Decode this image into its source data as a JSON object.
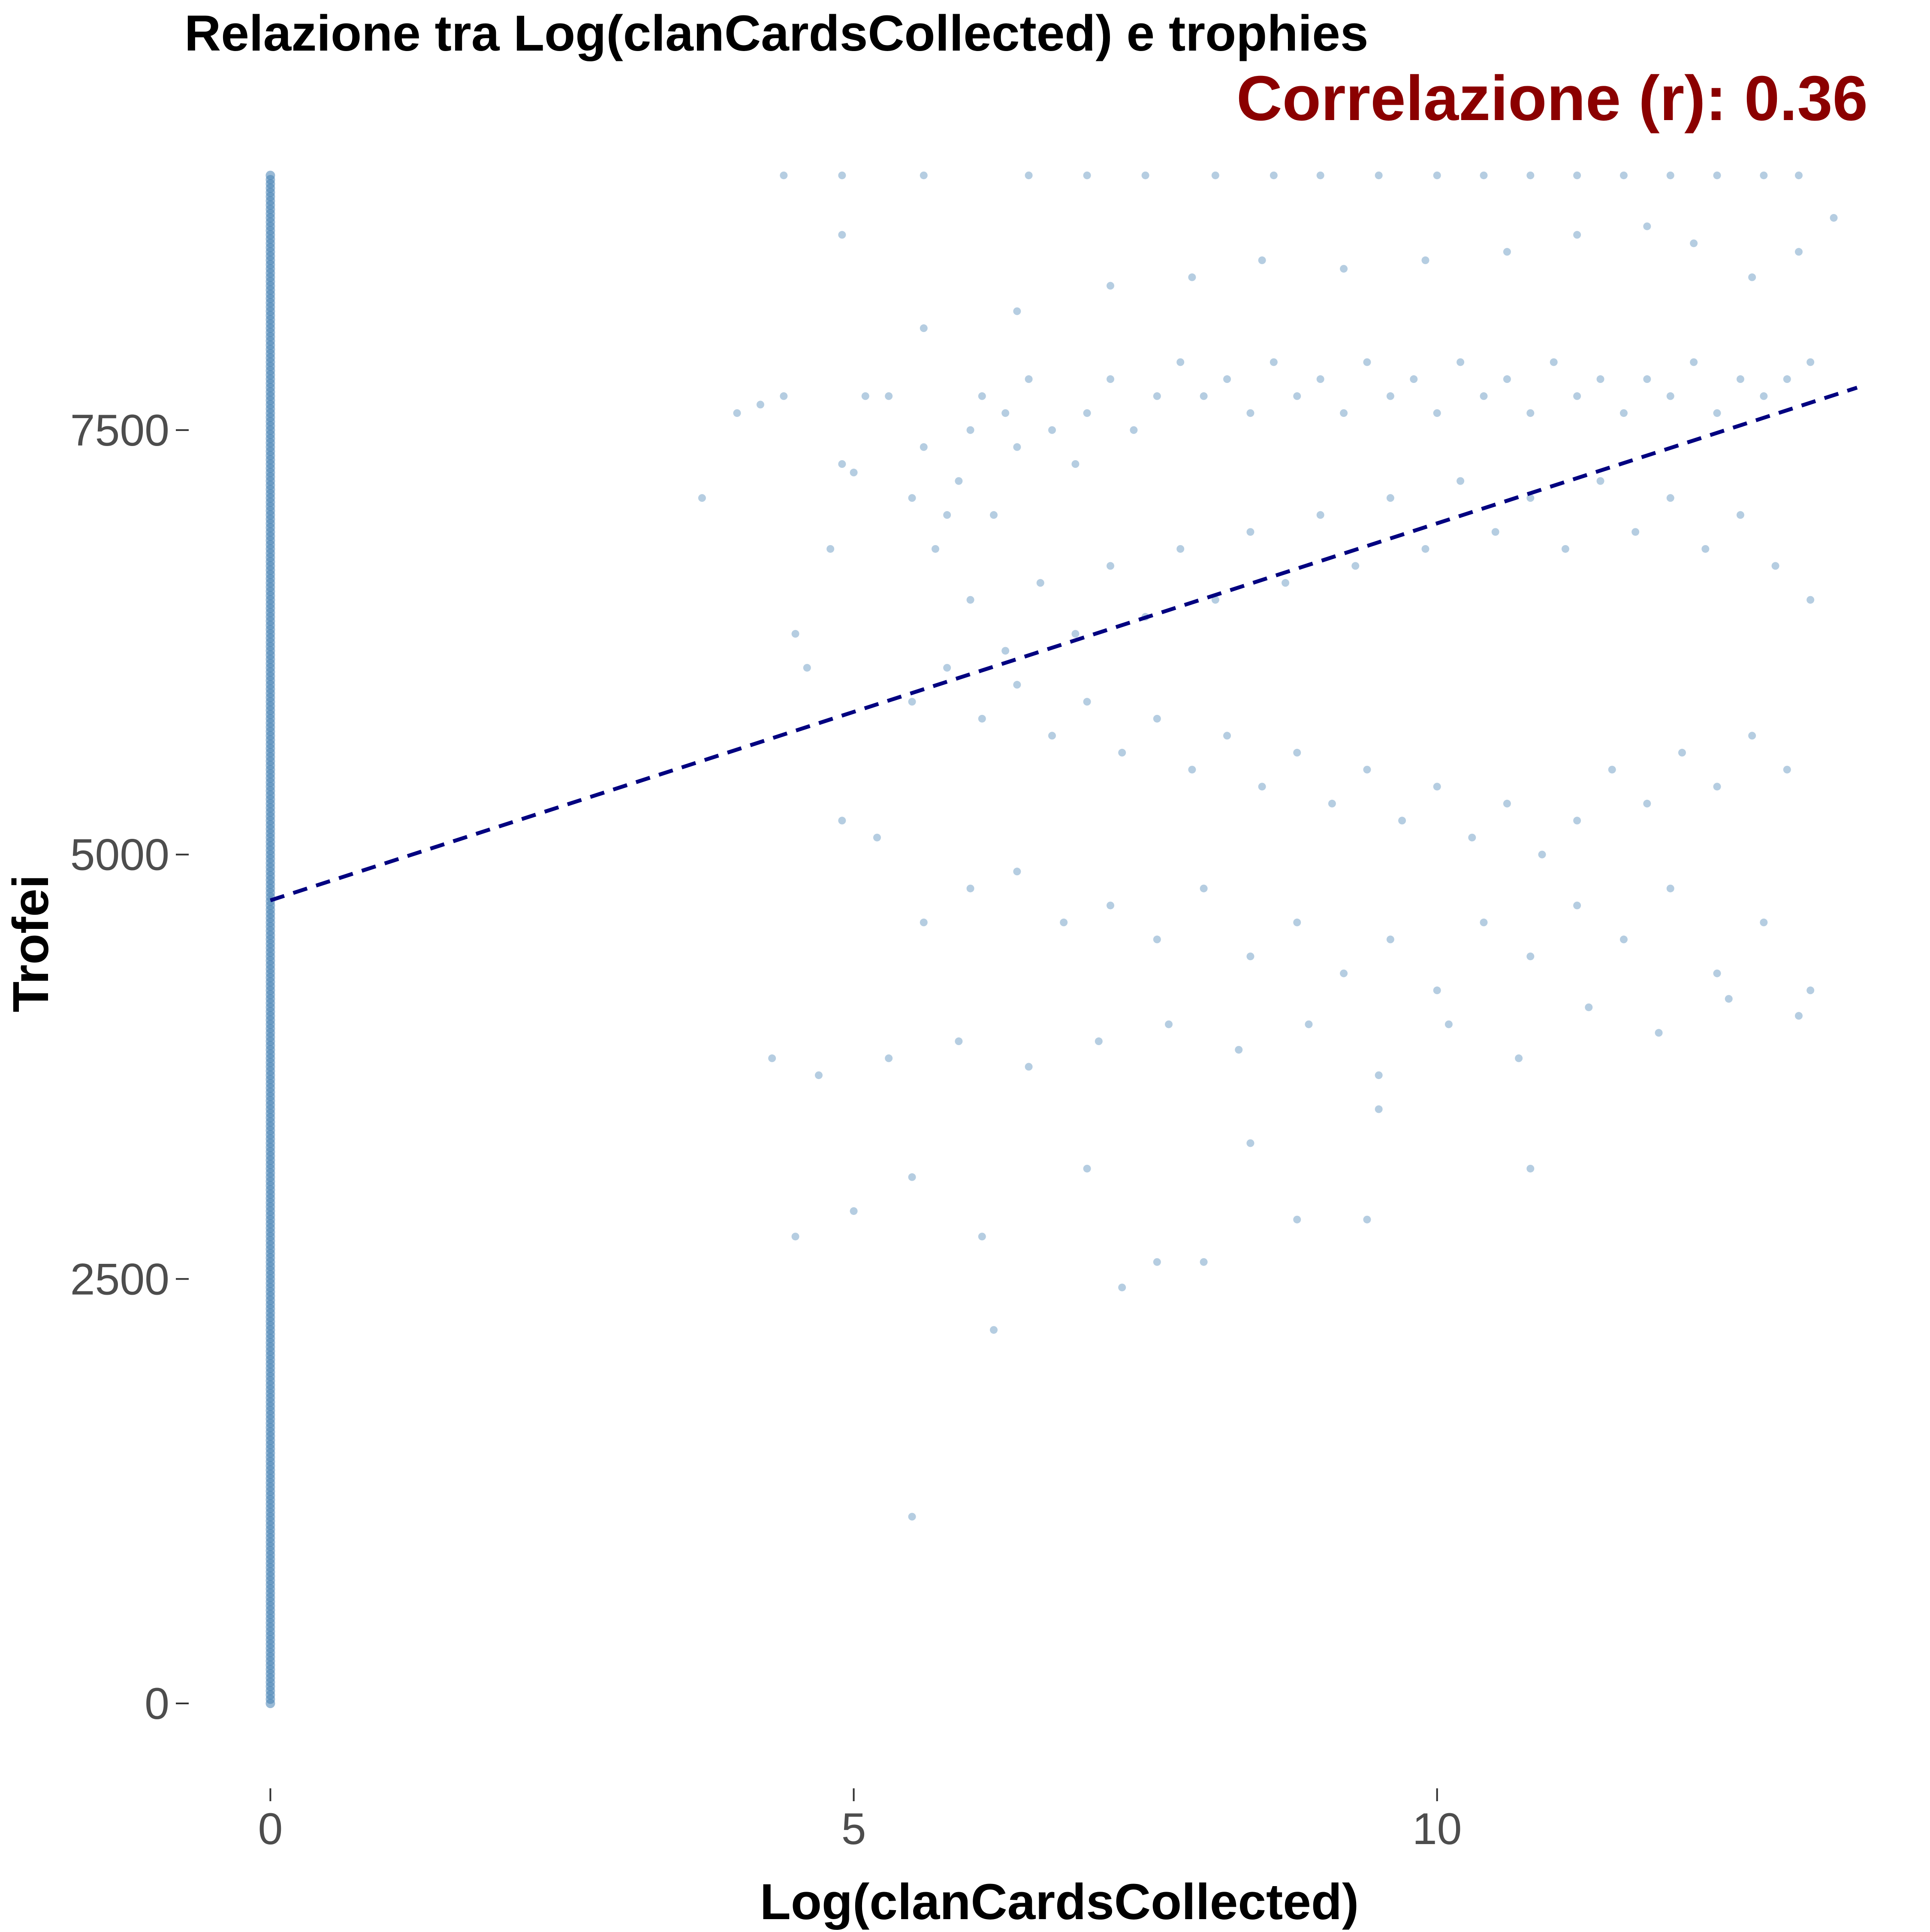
{
  "chart_data": {
    "type": "scatter",
    "title": "Relazione tra Log(clanCardsCollected) e trophies",
    "subtitle": "Correlazione (r): 0.36",
    "xlabel": "Log(clanCardsCollected)",
    "ylabel": "Trofei",
    "xlim": [
      -0.7,
      13.6
    ],
    "ylim": [
      -500,
      9250
    ],
    "x_ticks": [
      0,
      5,
      10
    ],
    "y_ticks": [
      0,
      2500,
      5000,
      7500
    ],
    "grid": false,
    "point_color": "#4682b4",
    "point_opacity": 0.4,
    "zero_column": {
      "x": 0,
      "y_min": 0,
      "y_max": 9000,
      "note_count": "many"
    },
    "points": [
      [
        3.7,
        7100
      ],
      [
        4.0,
        7600
      ],
      [
        4.2,
        7650
      ],
      [
        4.4,
        7700
      ],
      [
        4.5,
        6300
      ],
      [
        4.6,
        6100
      ],
      [
        4.8,
        6800
      ],
      [
        4.9,
        7300
      ],
      [
        5.0,
        7250
      ],
      [
        5.1,
        7700
      ],
      [
        5.3,
        7700
      ],
      [
        5.5,
        7100
      ],
      [
        5.6,
        7400
      ],
      [
        5.7,
        6800
      ],
      [
        5.8,
        7000
      ],
      [
        5.9,
        7200
      ],
      [
        6.0,
        7500
      ],
      [
        6.1,
        7700
      ],
      [
        6.2,
        7000
      ],
      [
        6.3,
        7600
      ],
      [
        6.4,
        7400
      ],
      [
        6.5,
        7800
      ],
      [
        6.7,
        7500
      ],
      [
        6.9,
        7300
      ],
      [
        7.0,
        7600
      ],
      [
        7.2,
        7800
      ],
      [
        7.4,
        7500
      ],
      [
        7.6,
        7700
      ],
      [
        7.8,
        7900
      ],
      [
        8.0,
        7700
      ],
      [
        8.2,
        7800
      ],
      [
        8.4,
        7600
      ],
      [
        8.6,
        7900
      ],
      [
        8.8,
        7700
      ],
      [
        9.0,
        7800
      ],
      [
        9.2,
        7600
      ],
      [
        9.4,
        7900
      ],
      [
        9.6,
        7700
      ],
      [
        9.8,
        7800
      ],
      [
        10.0,
        7600
      ],
      [
        10.2,
        7900
      ],
      [
        10.4,
        7700
      ],
      [
        10.6,
        7800
      ],
      [
        10.8,
        7600
      ],
      [
        11.0,
        7900
      ],
      [
        11.2,
        7700
      ],
      [
        11.4,
        7800
      ],
      [
        11.6,
        7600
      ],
      [
        11.8,
        7800
      ],
      [
        12.0,
        7700
      ],
      [
        12.2,
        7900
      ],
      [
        12.4,
        7600
      ],
      [
        12.6,
        7800
      ],
      [
        12.8,
        7700
      ],
      [
        13.0,
        7800
      ],
      [
        13.2,
        7900
      ],
      [
        6.0,
        6500
      ],
      [
        6.3,
        6200
      ],
      [
        6.6,
        6600
      ],
      [
        6.9,
        6300
      ],
      [
        7.2,
        6700
      ],
      [
        7.5,
        6400
      ],
      [
        7.8,
        6800
      ],
      [
        8.1,
        6500
      ],
      [
        8.4,
        6900
      ],
      [
        8.7,
        6600
      ],
      [
        9.0,
        7000
      ],
      [
        9.3,
        6700
      ],
      [
        9.6,
        7100
      ],
      [
        9.9,
        6800
      ],
      [
        10.2,
        7200
      ],
      [
        10.5,
        6900
      ],
      [
        10.8,
        7100
      ],
      [
        11.1,
        6800
      ],
      [
        11.4,
        7200
      ],
      [
        11.7,
        6900
      ],
      [
        12.0,
        7100
      ],
      [
        12.3,
        6800
      ],
      [
        12.6,
        7000
      ],
      [
        12.9,
        6700
      ],
      [
        13.2,
        6500
      ],
      [
        5.5,
        5900
      ],
      [
        5.8,
        6100
      ],
      [
        6.1,
        5800
      ],
      [
        6.4,
        6000
      ],
      [
        6.7,
        5700
      ],
      [
        7.0,
        5900
      ],
      [
        7.3,
        5600
      ],
      [
        7.6,
        5800
      ],
      [
        7.9,
        5500
      ],
      [
        8.2,
        5700
      ],
      [
        8.5,
        5400
      ],
      [
        8.8,
        5600
      ],
      [
        9.1,
        5300
      ],
      [
        9.4,
        5500
      ],
      [
        9.7,
        5200
      ],
      [
        10.0,
        5400
      ],
      [
        10.3,
        5100
      ],
      [
        10.6,
        5300
      ],
      [
        10.9,
        5000
      ],
      [
        11.2,
        5200
      ],
      [
        11.5,
        5500
      ],
      [
        11.8,
        5300
      ],
      [
        12.1,
        5600
      ],
      [
        12.4,
        5400
      ],
      [
        12.7,
        5700
      ],
      [
        13.0,
        5500
      ],
      [
        4.9,
        5200
      ],
      [
        5.2,
        5100
      ],
      [
        5.6,
        4600
      ],
      [
        6.0,
        4800
      ],
      [
        6.4,
        4900
      ],
      [
        6.8,
        4600
      ],
      [
        7.2,
        4700
      ],
      [
        7.6,
        4500
      ],
      [
        8.0,
        4800
      ],
      [
        8.4,
        4400
      ],
      [
        8.8,
        4600
      ],
      [
        9.2,
        4300
      ],
      [
        9.6,
        4500
      ],
      [
        10.0,
        4200
      ],
      [
        10.4,
        4600
      ],
      [
        10.8,
        4400
      ],
      [
        11.2,
        4700
      ],
      [
        11.6,
        4500
      ],
      [
        12.0,
        4800
      ],
      [
        12.4,
        4300
      ],
      [
        12.8,
        4600
      ],
      [
        13.2,
        4200
      ],
      [
        4.3,
        3800
      ],
      [
        4.7,
        3700
      ],
      [
        5.3,
        3800
      ],
      [
        5.9,
        3900
      ],
      [
        6.5,
        3750
      ],
      [
        7.1,
        3900
      ],
      [
        7.7,
        4000
      ],
      [
        8.3,
        3850
      ],
      [
        8.9,
        4000
      ],
      [
        9.5,
        3700
      ],
      [
        10.1,
        4000
      ],
      [
        10.7,
        3800
      ],
      [
        11.3,
        4100
      ],
      [
        11.9,
        3950
      ],
      [
        12.5,
        4150
      ],
      [
        13.1,
        4050
      ],
      [
        4.5,
        2750
      ],
      [
        5.0,
        2900
      ],
      [
        5.5,
        3100
      ],
      [
        6.1,
        2750
      ],
      [
        7.3,
        2450
      ],
      [
        7.6,
        2600
      ],
      [
        8.0,
        2600
      ],
      [
        8.8,
        2850
      ],
      [
        9.4,
        2850
      ],
      [
        10.8,
        3150
      ],
      [
        7.0,
        3150
      ],
      [
        8.4,
        3300
      ],
      [
        9.5,
        3500
      ],
      [
        6.2,
        2200
      ],
      [
        5.5,
        1100
      ],
      [
        4.4,
        9000
      ],
      [
        4.9,
        9000
      ],
      [
        5.6,
        9000
      ],
      [
        6.5,
        9000
      ],
      [
        7.0,
        9000
      ],
      [
        7.5,
        9000
      ],
      [
        8.1,
        9000
      ],
      [
        8.6,
        9000
      ],
      [
        9.0,
        9000
      ],
      [
        9.5,
        9000
      ],
      [
        10.0,
        9000
      ],
      [
        10.4,
        9000
      ],
      [
        10.8,
        9000
      ],
      [
        11.2,
        9000
      ],
      [
        11.6,
        9000
      ],
      [
        12.0,
        9000
      ],
      [
        12.4,
        9000
      ],
      [
        12.8,
        9000
      ],
      [
        13.1,
        9000
      ],
      [
        13.4,
        8750
      ],
      [
        13.1,
        8550
      ],
      [
        12.7,
        8400
      ],
      [
        12.2,
        8600
      ],
      [
        11.8,
        8700
      ],
      [
        11.2,
        8650
      ],
      [
        10.6,
        8550
      ],
      [
        9.9,
        8500
      ],
      [
        9.2,
        8450
      ],
      [
        8.5,
        8500
      ],
      [
        7.9,
        8400
      ],
      [
        7.2,
        8350
      ],
      [
        6.4,
        8200
      ],
      [
        5.6,
        8100
      ],
      [
        4.9,
        8650
      ]
    ],
    "trendline": {
      "style": "dashed",
      "color": "#000080",
      "from": [
        0,
        4730
      ],
      "to": [
        13.6,
        7750
      ]
    }
  }
}
